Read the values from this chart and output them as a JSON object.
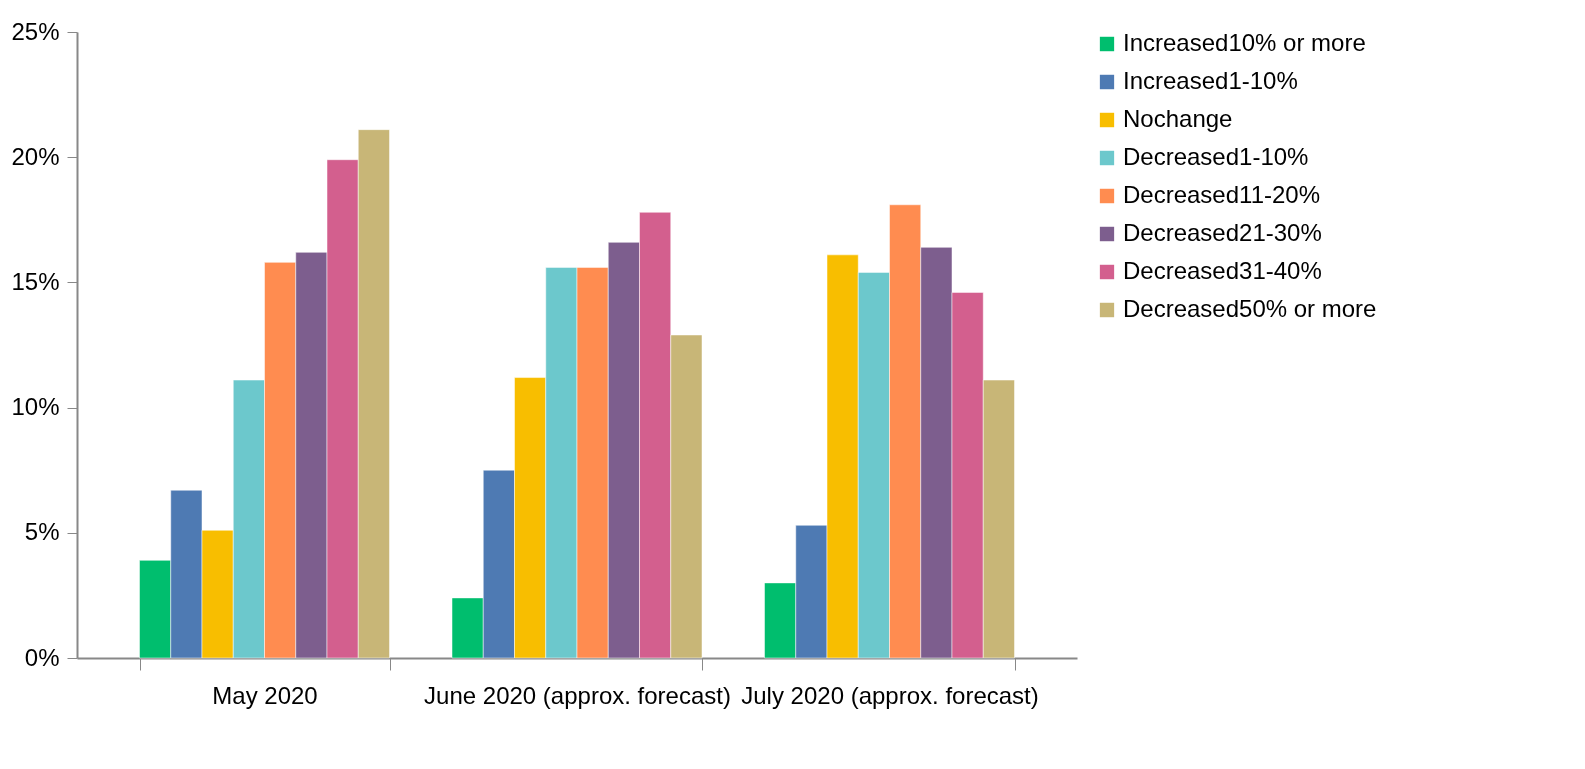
{
  "chart_data": {
    "type": "bar",
    "categories": [
      "May 2020",
      "June 2020 (approx. forecast)",
      "July 2020 (approx. forecast)"
    ],
    "series": [
      {
        "name": "Increased10% or more",
        "color": "#00be6e",
        "values": [
          3.9,
          2.4,
          3.0
        ]
      },
      {
        "name": "Increased1-10%",
        "color": "#4e7ab3",
        "values": [
          6.7,
          7.5,
          5.3
        ]
      },
      {
        "name": "Nochange",
        "color": "#f8be00",
        "values": [
          5.1,
          11.2,
          16.1
        ]
      },
      {
        "name": "Decreased1-10%",
        "color": "#6cc8cc",
        "values": [
          11.1,
          15.6,
          15.4
        ]
      },
      {
        "name": "Decreased11-20%",
        "color": "#ff8c50",
        "values": [
          15.8,
          15.6,
          18.1
        ]
      },
      {
        "name": "Decreased21-30%",
        "color": "#7d5e8e",
        "values": [
          16.2,
          16.6,
          16.4
        ]
      },
      {
        "name": "Decreased31-40%",
        "color": "#d35f8e",
        "values": [
          19.9,
          17.8,
          14.6
        ]
      },
      {
        "name": "Decreased50% or more",
        "color": "#c8b677",
        "values": [
          21.1,
          12.9,
          11.1
        ]
      }
    ],
    "ylim": [
      0,
      25
    ],
    "yticks": [
      {
        "value": 0,
        "label": "0%"
      },
      {
        "value": 5,
        "label": "5%"
      },
      {
        "value": 10,
        "label": "10%"
      },
      {
        "value": 15,
        "label": "15%"
      },
      {
        "value": 20,
        "label": "20%"
      },
      {
        "value": 25,
        "label": "25%"
      }
    ],
    "grid": false,
    "legend": "right"
  }
}
